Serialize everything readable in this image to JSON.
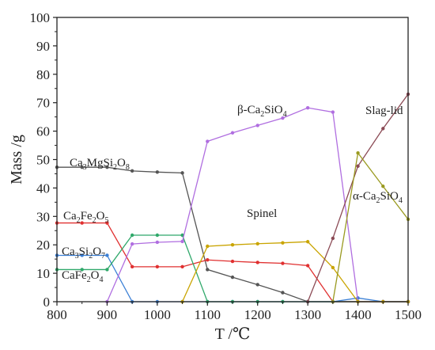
{
  "chart_data": {
    "type": "line",
    "xlabel": "T /℃",
    "ylabel": "Mass /g",
    "xlim": [
      800,
      1500
    ],
    "ylim": [
      0,
      100
    ],
    "x_ticks": [
      "800",
      "900",
      "1000",
      "1100",
      "1200",
      "1300",
      "1400",
      "1500"
    ],
    "y_ticks": [
      "0",
      "10",
      "20",
      "30",
      "40",
      "50",
      "60",
      "70",
      "80",
      "90",
      "100"
    ],
    "grid": false,
    "series": [
      {
        "name": "Ca3MgSi2O8",
        "label_parts": [
          [
            "Ca",
            ""
          ],
          [
            "3",
            "sub"
          ],
          [
            "MgSi",
            ""
          ],
          [
            "2",
            "sub"
          ],
          [
            "O",
            ""
          ],
          [
            "8",
            "sub"
          ]
        ],
        "color": "#555555",
        "points": [
          [
            800,
            47.3
          ],
          [
            850,
            47.3
          ],
          [
            900,
            47.3
          ],
          [
            950,
            46.0
          ],
          [
            1000,
            45.6
          ],
          [
            1050,
            45.3
          ],
          [
            1100,
            11.3
          ],
          [
            1150,
            8.6
          ],
          [
            1200,
            6.0
          ],
          [
            1250,
            3.2
          ],
          [
            1300,
            0
          ],
          [
            1350,
            0
          ],
          [
            1400,
            0
          ],
          [
            1450,
            0
          ],
          [
            1500,
            0
          ]
        ]
      },
      {
        "name": "Ca2Fe2O5",
        "label_parts": [
          [
            "Ca",
            ""
          ],
          [
            "2",
            "sub"
          ],
          [
            "Fe",
            ""
          ],
          [
            "2",
            "sub"
          ],
          [
            "O",
            ""
          ],
          [
            "5",
            "sub"
          ]
        ],
        "color": "#e03030",
        "points": [
          [
            800,
            27.7
          ],
          [
            850,
            27.7
          ],
          [
            900,
            27.7
          ],
          [
            950,
            12.3
          ],
          [
            1000,
            12.3
          ],
          [
            1050,
            12.3
          ],
          [
            1100,
            14.7
          ],
          [
            1150,
            14.2
          ],
          [
            1200,
            13.8
          ],
          [
            1250,
            13.5
          ],
          [
            1300,
            12.7
          ],
          [
            1350,
            0
          ],
          [
            1400,
            0
          ],
          [
            1450,
            0
          ],
          [
            1500,
            0
          ]
        ]
      },
      {
        "name": "Ca3Si2O7",
        "label_parts": [
          [
            "Ca",
            ""
          ],
          [
            "3",
            "sub"
          ],
          [
            "Si",
            ""
          ],
          [
            "2",
            "sub"
          ],
          [
            "O",
            ""
          ],
          [
            "7",
            "sub"
          ]
        ],
        "color": "#3a7fd5",
        "points": [
          [
            800,
            16.3
          ],
          [
            850,
            16.3
          ],
          [
            900,
            16.3
          ],
          [
            950,
            0
          ],
          [
            1000,
            0
          ],
          [
            1050,
            0
          ],
          [
            1100,
            0
          ],
          [
            1150,
            0
          ],
          [
            1200,
            0
          ],
          [
            1250,
            0
          ],
          [
            1300,
            0
          ],
          [
            1350,
            0
          ],
          [
            1400,
            1.3
          ],
          [
            1450,
            0
          ],
          [
            1500,
            0
          ]
        ]
      },
      {
        "name": "CaFe2O4",
        "label_parts": [
          [
            "CaFe",
            ""
          ],
          [
            "2",
            "sub"
          ],
          [
            "O",
            ""
          ],
          [
            "4",
            "sub"
          ]
        ],
        "color": "#2fa86a",
        "points": [
          [
            800,
            11.3
          ],
          [
            850,
            11.3
          ],
          [
            900,
            11.3
          ],
          [
            950,
            23.4
          ],
          [
            1000,
            23.4
          ],
          [
            1050,
            23.4
          ],
          [
            1100,
            0
          ],
          [
            1150,
            0
          ],
          [
            1200,
            0
          ],
          [
            1250,
            0
          ],
          [
            1300,
            0
          ],
          [
            1350,
            0
          ],
          [
            1400,
            0
          ],
          [
            1450,
            0
          ],
          [
            1500,
            0
          ]
        ]
      },
      {
        "name": "β-Ca2SiO4",
        "label_parts": [
          [
            "β-Ca",
            ""
          ],
          [
            "2",
            "sub"
          ],
          [
            "SiO",
            ""
          ],
          [
            "4",
            "sub"
          ]
        ],
        "color": "#b06ee0",
        "points": [
          [
            900,
            0
          ],
          [
            950,
            20.3
          ],
          [
            1000,
            20.9
          ],
          [
            1050,
            21.2
          ],
          [
            1100,
            56.4
          ],
          [
            1150,
            59.4
          ],
          [
            1200,
            62.0
          ],
          [
            1250,
            64.6
          ],
          [
            1300,
            68.2
          ],
          [
            1350,
            66.7
          ],
          [
            1400,
            0
          ],
          [
            1450,
            0
          ],
          [
            1500,
            0
          ]
        ]
      },
      {
        "name": "Spinel",
        "label_parts": [
          [
            "Spinel",
            ""
          ]
        ],
        "color": "#c9a400",
        "points": [
          [
            1050,
            0
          ],
          [
            1100,
            19.5
          ],
          [
            1150,
            20.0
          ],
          [
            1200,
            20.4
          ],
          [
            1250,
            20.7
          ],
          [
            1300,
            21.1
          ],
          [
            1350,
            12.0
          ],
          [
            1400,
            0
          ],
          [
            1450,
            0
          ],
          [
            1500,
            0
          ]
        ]
      },
      {
        "name": "Slag-lid",
        "label_parts": [
          [
            "Slag-lid",
            ""
          ]
        ],
        "color": "#8b4a55",
        "points": [
          [
            1300,
            0
          ],
          [
            1350,
            22.3
          ],
          [
            1400,
            47.7
          ],
          [
            1450,
            60.9
          ],
          [
            1500,
            73.0
          ]
        ]
      },
      {
        "name": "α-Ca2SiO4",
        "label_parts": [
          [
            "α-Ca",
            ""
          ],
          [
            "2",
            "sub"
          ],
          [
            "SiO",
            ""
          ],
          [
            "4",
            "sub"
          ]
        ],
        "color": "#9a9a20",
        "points": [
          [
            1350,
            0
          ],
          [
            1400,
            52.3
          ],
          [
            1450,
            40.6
          ],
          [
            1500,
            29.0
          ]
        ]
      }
    ]
  }
}
